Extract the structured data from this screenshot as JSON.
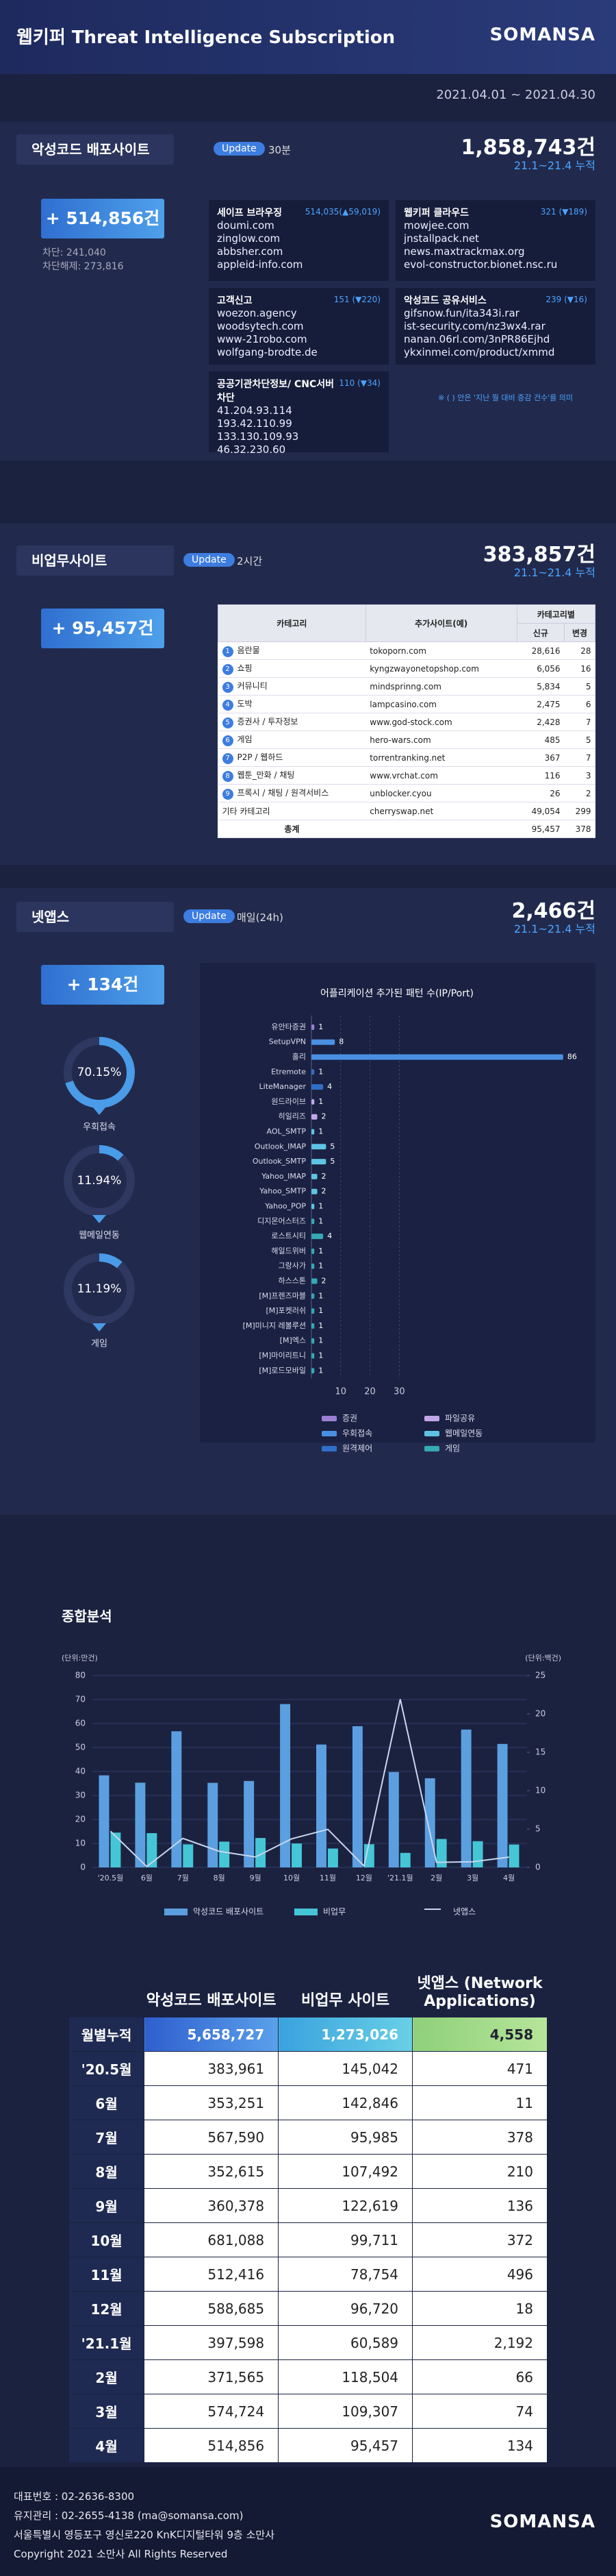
{
  "header": {
    "title": "웹키퍼 Threat Intelligence Subscription",
    "logo": "SOMANSA",
    "period": "2021.04.01 ~ 2021.04.30"
  },
  "malware": {
    "title": "악성코드 배포사이트",
    "update_label": "Update",
    "update": "30분",
    "total": "1,858,743건",
    "total_note": "21.1~21.4 누적",
    "added": "+ 514,856건",
    "blocked": "차단: 241,040",
    "unblocked": "차단해제: 273,816",
    "sources": [
      {
        "name": "세이프 브라우징",
        "count": "514,035(▲59,019)",
        "examples": [
          "doumi.com",
          "zinglow.com",
          "abbsher.com",
          "appleid-info.com"
        ]
      },
      {
        "name": "웹키퍼 클라우드",
        "count": "321 (▼189)",
        "examples": [
          "mowjee.com",
          "jnstallpack.net",
          "news.maxtrackmax.org",
          "evol-constructor.bionet.nsc.ru"
        ]
      },
      {
        "name": "고객신고",
        "count": "151 (▼220)",
        "examples": [
          "woezon.agency",
          "woodsytech.com",
          "www-21robo.com",
          "wolfgang-brodte.de"
        ]
      },
      {
        "name": "악성코드 공유서비스",
        "count": "239 (▼16)",
        "examples": [
          "gifsnow.fun/ita343i.rar",
          "ist-security.com/nz3wx4.rar",
          "nanan.06rl.com/3nPR86Ejhd",
          "ykxinmei.com/product/xmmd"
        ]
      },
      {
        "name": "공공기관차단정보/ CNC서버차단",
        "count": "110 (▼34)",
        "examples": [
          "41.204.93.114",
          "193.42.110.99",
          "133.130.109.93",
          "46.32.230.60"
        ]
      }
    ],
    "note": "※ ( ) 안은 '지난 월 대비 증감 건수'를 의미"
  },
  "nonwork": {
    "title": "비업무사이트",
    "update_label": "Update",
    "update": "2시간",
    "total": "383,857건",
    "total_note": "21.1~21.4 누적",
    "added": "+ 95,457건",
    "table": {
      "headers": [
        "카테고리",
        "추가사이트(예)",
        "카테고리별"
      ],
      "subheaders": [
        "신규",
        "변경"
      ],
      "rows": [
        {
          "rank": "1",
          "category": "음란물",
          "example": "tokoporn.com",
          "new": "28,616",
          "changed": "28"
        },
        {
          "rank": "2",
          "category": "쇼핑",
          "example": "kyngzwayonetopshop.com",
          "new": "6,056",
          "changed": "16"
        },
        {
          "rank": "3",
          "category": "커뮤니티",
          "example": "mindsprinng.com",
          "new": "5,834",
          "changed": "5"
        },
        {
          "rank": "4",
          "category": "도박",
          "example": "lampcasino.com",
          "new": "2,475",
          "changed": "6"
        },
        {
          "rank": "5",
          "category": "증권사 / 투자정보",
          "example": "www.god-stock.com",
          "new": "2,428",
          "changed": "7"
        },
        {
          "rank": "6",
          "category": "게임",
          "example": "hero-wars.com",
          "new": "485",
          "changed": "5"
        },
        {
          "rank": "7",
          "category": "P2P / 웹하드",
          "example": "torrentranking.net",
          "new": "367",
          "changed": "7"
        },
        {
          "rank": "8",
          "category": "웹툰_만화 / 채팅",
          "example": "www.vrchat.com",
          "new": "116",
          "changed": "3"
        },
        {
          "rank": "9",
          "category": "프록시 / 채팅 / 원격서비스",
          "example": "unblocker.cyou",
          "new": "26",
          "changed": "2"
        },
        {
          "category": "기타 카테고리",
          "example": "cherryswap.net",
          "new": "49,054",
          "changed": "299"
        },
        {
          "category": "총계",
          "new": "95,457",
          "changed": "378"
        }
      ]
    }
  },
  "netapps": {
    "title": "넷앱스",
    "update_label": "Update",
    "update": "매일(24h)",
    "total": "2,466건",
    "total_note": "21.1~21.4 누적",
    "added": "+ 134건"
  },
  "summary": {
    "headers": [
      "악성코드 배포사이트",
      "비업무 사이트",
      "넷앱스 (Network Applications)"
    ],
    "rows": [
      [
        "월별누적",
        "5,658,727",
        "1,273,026",
        "4,558"
      ],
      [
        "'20.5월",
        "383,961",
        "145,042",
        "471"
      ],
      [
        "6월",
        "353,251",
        "142,846",
        "11"
      ],
      [
        "7월",
        "567,590",
        "95,985",
        "378"
      ],
      [
        "8월",
        "352,615",
        "107,492",
        "210"
      ],
      [
        "9월",
        "360,378",
        "122,619",
        "136"
      ],
      [
        "10월",
        "681,088",
        "99,711",
        "372"
      ],
      [
        "11월",
        "512,416",
        "78,754",
        "496"
      ],
      [
        "12월",
        "588,685",
        "96,720",
        "18"
      ],
      [
        "'21.1월",
        "397,598",
        "60,589",
        "2,192"
      ],
      [
        "2월",
        "371,565",
        "118,504",
        "66"
      ],
      [
        "3월",
        "574,724",
        "109,307",
        "74"
      ],
      [
        "4월",
        "514,856",
        "95,457",
        "134"
      ]
    ]
  },
  "footer": {
    "lines": [
      "대표번호 : 02-2636-8300",
      "유지관리 : 02-2655-4138 (ma@somansa.com)",
      "서울특별시 영등포구 영신로220 KnK디지털타워 9층 소만사",
      "Copyright 2021 소만사 All Rights Reserved"
    ],
    "logo": "SOMANSA"
  },
  "chart_data": [
    {
      "type": "donut",
      "categories": [
        "우회접속",
        "웹메일연동",
        "게임"
      ],
      "values": [
        70.15,
        11.94,
        11.19
      ],
      "value_labels": [
        "70.15%",
        "11.94%",
        "11.19%"
      ],
      "color": "#4a9be8"
    },
    {
      "type": "hbar",
      "title": "어플리케이션 추가된 패턴 수(IP/Port)",
      "categories": [
        "유안타증권",
        "SetupVPN",
        "홀리",
        "Etremote",
        "LiteManager",
        "원드라이브",
        "히일리즈",
        "AOL_SMTP",
        "Outlook_IMAP",
        "Outlook_SMTP",
        "Yahoo_IMAP",
        "Yahoo_SMTP",
        "Yahoo_POP",
        "디지몬어스터즈",
        "로스트시티",
        "해일드위버",
        "그랑사가",
        "하스스톤",
        "[M]프렌즈마블",
        "[M]포켓러쉬",
        "[M]미니지 레볼루션",
        "[M]엑스",
        "[M]마이리트니",
        "[M]로드모바일"
      ],
      "values": [
        1,
        8,
        86,
        1,
        4,
        1,
        2,
        1,
        5,
        5,
        2,
        2,
        1,
        1,
        4,
        1,
        1,
        2,
        1,
        1,
        1,
        1,
        1,
        1
      ],
      "colors": [
        "#9b7fd4",
        "#4a90e2",
        "#4a90e2",
        "#2f6fc9",
        "#2f6fc9",
        "#c3a6e8",
        "#c3a6e8",
        "#5fc3e4",
        "#5fc3e4",
        "#5fc3e4",
        "#5fc3e4",
        "#5fc3e4",
        "#5fc3e4",
        "#36a9b5",
        "#36a9b5",
        "#36a9b5",
        "#36a9b5",
        "#36a9b5",
        "#36a9b5",
        "#36a9b5",
        "#36a9b5",
        "#36a9b5",
        "#36a9b5",
        "#36a9b5"
      ],
      "xlim": [
        0,
        90
      ],
      "xticks": [
        10,
        20,
        30
      ],
      "grid": true,
      "legend": [
        {
          "name": "증권",
          "color": "#9b7fd4"
        },
        {
          "name": "파일공유",
          "color": "#c3a6e8"
        },
        {
          "name": "우회접속",
          "color": "#4a90e2"
        },
        {
          "name": "웹메일연동",
          "color": "#5fc3e4"
        },
        {
          "name": "원격제어",
          "color": "#2f6fc9"
        },
        {
          "name": "게임",
          "color": "#36a9b5"
        }
      ]
    },
    {
      "type": "combo",
      "title": "종합분석",
      "categories": [
        "'20.5월",
        "6월",
        "7월",
        "8월",
        "9월",
        "10월",
        "11월",
        "12월",
        "'21.1월",
        "2월",
        "3월",
        "4월"
      ],
      "y_label": "(단위:만건)",
      "y2_label": "(단위:백건)",
      "ylim": [
        0,
        80
      ],
      "yticks": [
        0,
        10,
        20,
        30,
        40,
        50,
        60,
        70,
        80
      ],
      "y2lim": [
        0,
        25
      ],
      "y2ticks": [
        0,
        5,
        10,
        15,
        20,
        25
      ],
      "grid": true,
      "series": [
        {
          "name": "악성코드 배포사이트",
          "type": "bar",
          "color": "#5b9fe0",
          "values": [
            38.3961,
            35.3251,
            56.759,
            35.2615,
            36.0378,
            68.1088,
            51.2416,
            58.8685,
            39.7598,
            37.1565,
            57.4724,
            51.4856
          ]
        },
        {
          "name": "비업무",
          "type": "bar",
          "color": "#45c6d6",
          "values": [
            14.5042,
            14.2846,
            9.5985,
            10.7492,
            12.2619,
            9.9711,
            7.8754,
            9.672,
            6.0589,
            11.8504,
            10.9307,
            9.5457
          ]
        },
        {
          "name": "넷앱스",
          "type": "line",
          "axis": "y2",
          "color": "#c8d6ee",
          "values": [
            4.71,
            0.11,
            3.78,
            2.1,
            1.36,
            3.72,
            4.96,
            0.18,
            21.92,
            0.66,
            0.74,
            1.34
          ]
        }
      ]
    }
  ]
}
